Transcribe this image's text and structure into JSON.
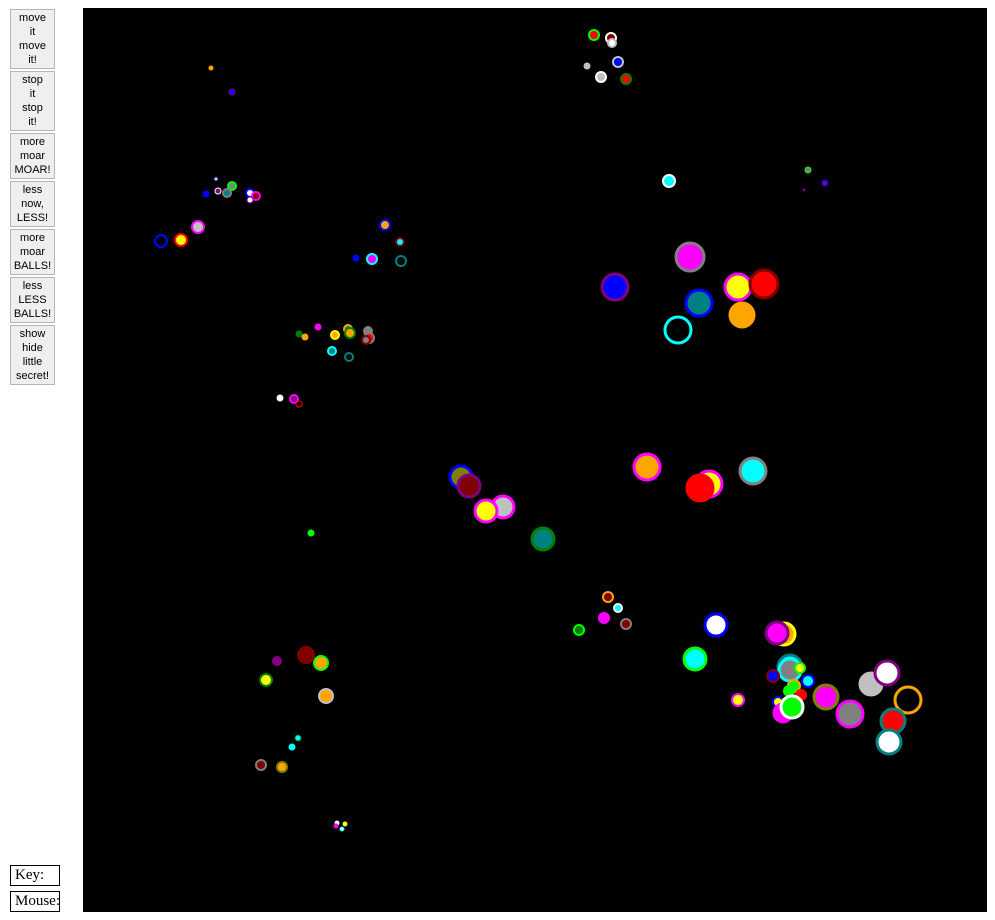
{
  "controls": {
    "buttons": [
      {
        "id": "move",
        "label": "move\nit\nmove\nit!"
      },
      {
        "id": "stop",
        "label": "stop\nit\nstop\nit!"
      },
      {
        "id": "more",
        "label": "more\nmoar\nMOAR!"
      },
      {
        "id": "less",
        "label": "less\nnow,\nLESS!"
      },
      {
        "id": "more-balls",
        "label": "more\nmoar\nBALLS!"
      },
      {
        "id": "less-balls",
        "label": "less\nLESS\nBALLS!"
      },
      {
        "id": "secret",
        "label": "show\nhide\nlittle\nsecret!"
      }
    ]
  },
  "readouts": {
    "key_label": "Key:",
    "mouse_label": "Mouse:"
  },
  "colors": {
    "stage_background": "#000000",
    "palette": [
      "#ffffff",
      "#ff0000",
      "#00ff00",
      "#0000ff",
      "#ffff00",
      "#00ffff",
      "#ff00ff",
      "#ffa500",
      "#808080",
      "#c0c0c0",
      "#008080",
      "#800000",
      "#800080",
      "#008000",
      "#808000"
    ]
  }
}
